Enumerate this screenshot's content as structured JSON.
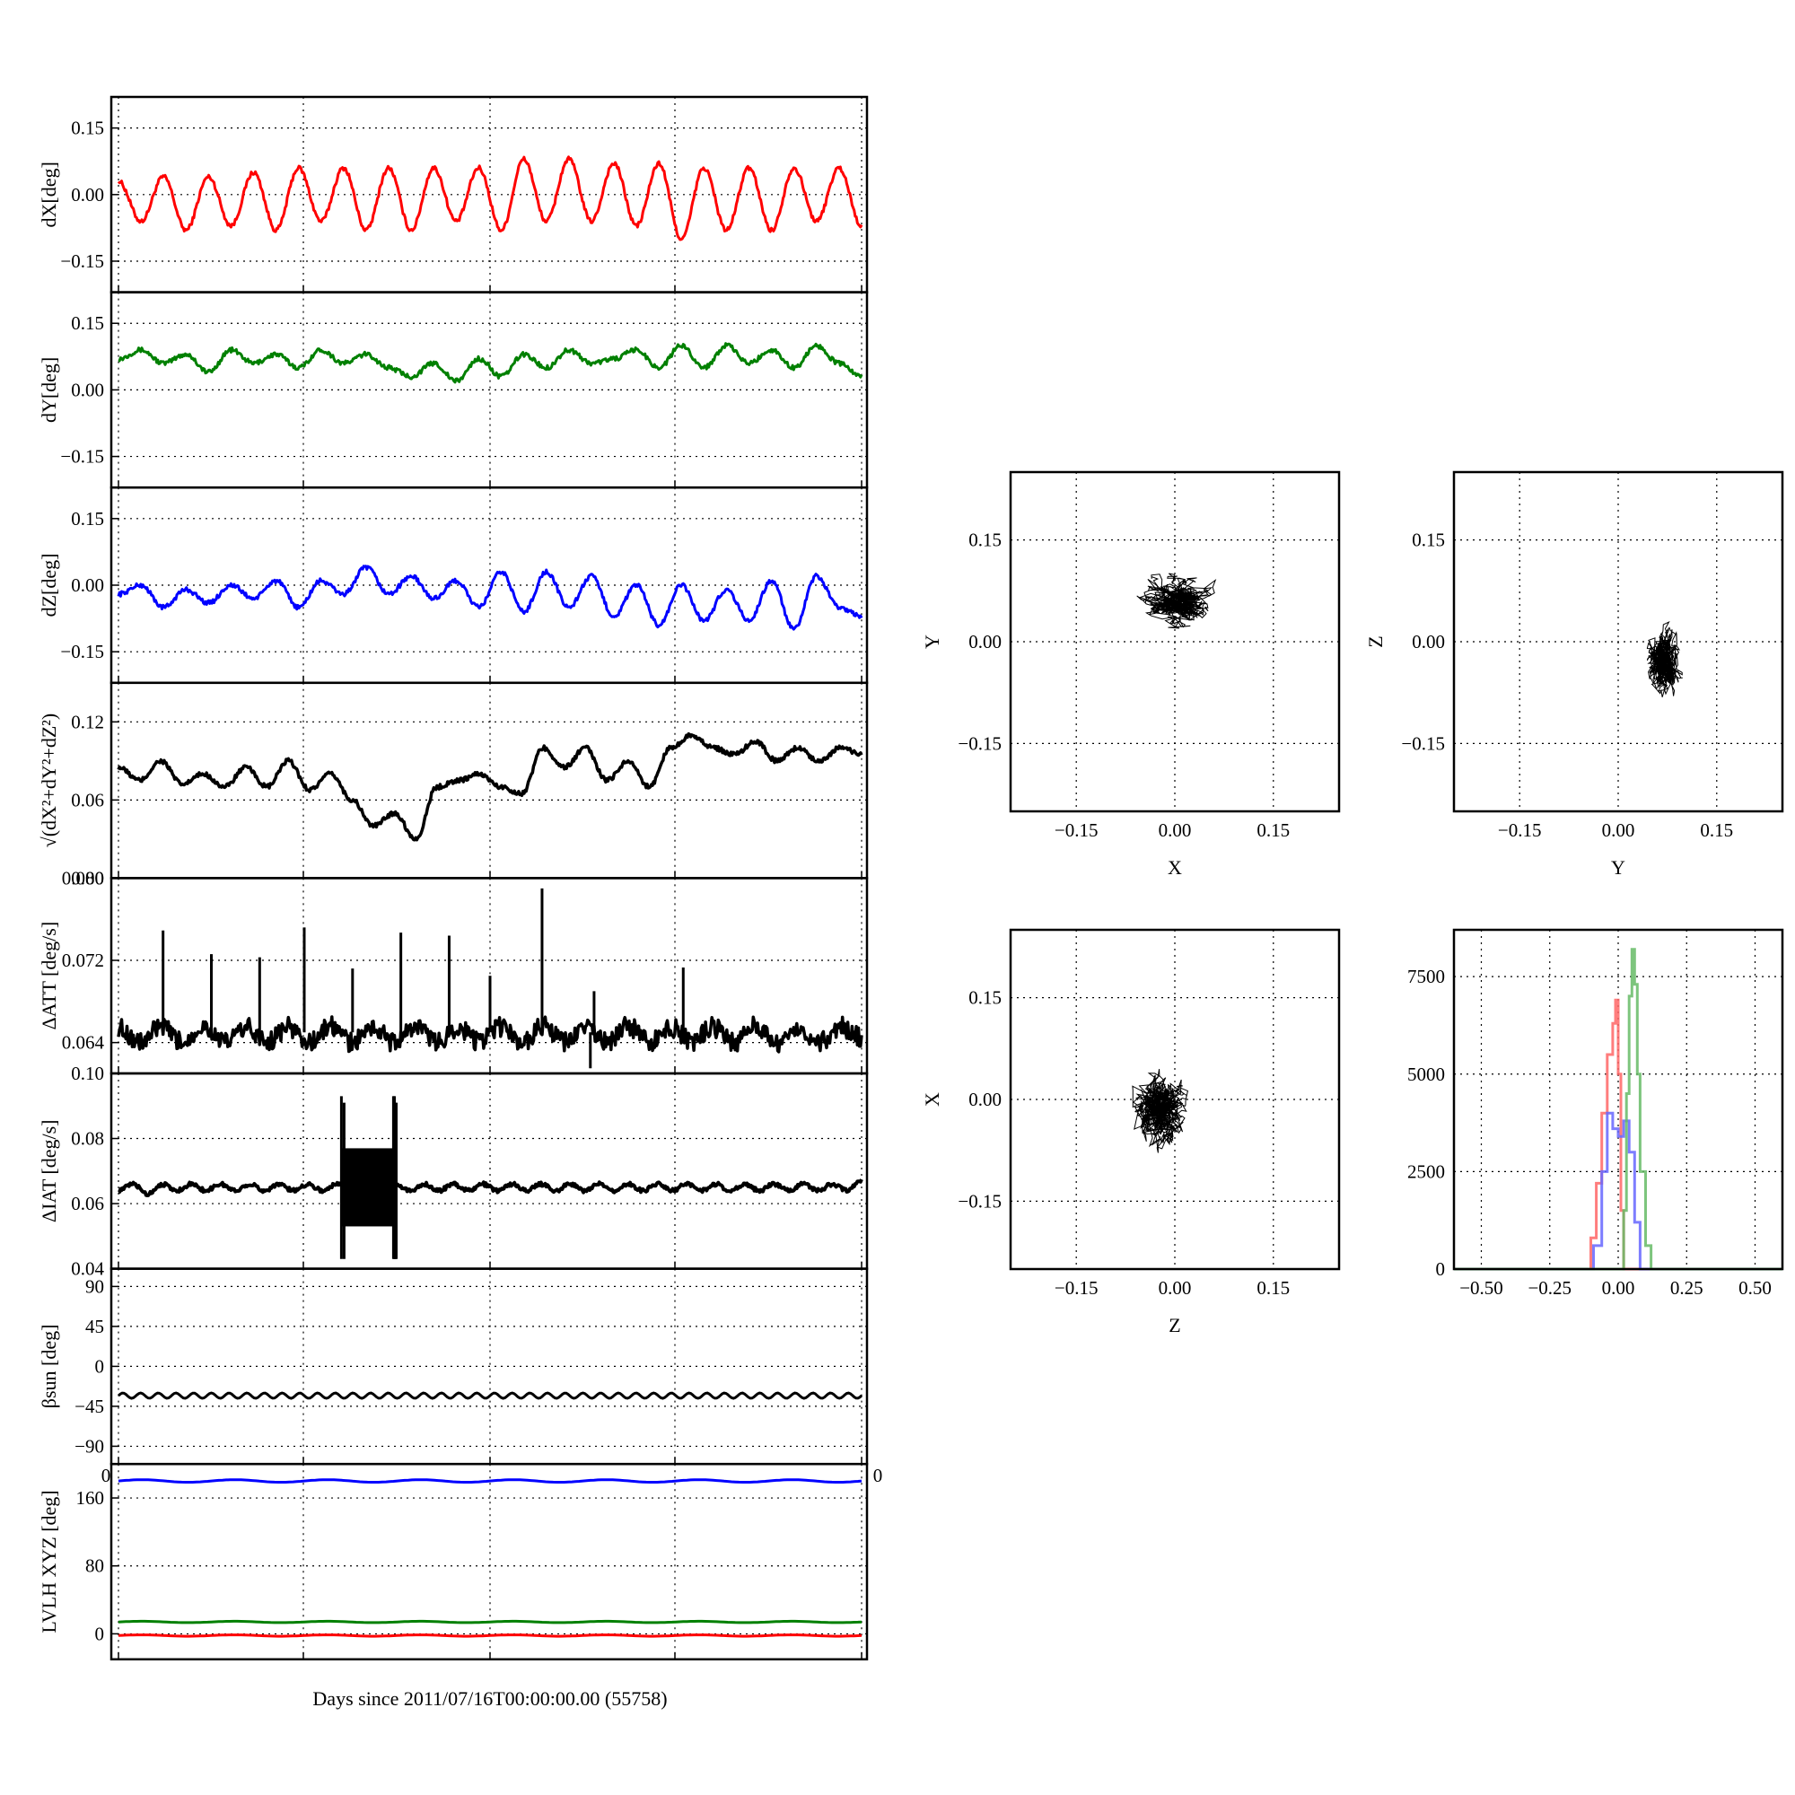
{
  "chart_data": {
    "xlabel": "Days since 2011/07/16T00:00:00.00 (55758)",
    "timeseries": [
      {
        "id": "dx",
        "type": "line",
        "ylabel": "dX[deg]",
        "ylim": [
          -0.22,
          0.22
        ],
        "yticks": [
          "0.15",
          "0.00",
          "−0.15"
        ],
        "ytick_values": [
          0.15,
          0.0,
          -0.15
        ],
        "color": "#ff0000",
        "line_width": 3,
        "series": [
          {
            "values": [
              0.03,
              -0.06,
              0.04,
              -0.08,
              0.04,
              -0.07,
              0.05,
              -0.08,
              0.06,
              -0.06,
              0.06,
              -0.08,
              0.06,
              -0.08,
              0.06,
              -0.06,
              0.06,
              -0.08,
              0.08,
              -0.06,
              0.08,
              -0.06,
              0.07,
              -0.07,
              0.07,
              -0.1,
              0.06,
              -0.08,
              0.06,
              -0.08,
              0.06,
              -0.06,
              0.06,
              -0.07
            ]
          }
        ]
      },
      {
        "id": "dy",
        "type": "line",
        "ylabel": "dY[deg]",
        "ylim": [
          -0.22,
          0.22
        ],
        "yticks": [
          "0.15",
          "0.00",
          "−0.15"
        ],
        "ytick_values": [
          0.15,
          0.0,
          -0.15
        ],
        "color": "#008000",
        "line_width": 3,
        "series": [
          {
            "values": [
              0.07,
              0.09,
              0.06,
              0.08,
              0.04,
              0.09,
              0.06,
              0.08,
              0.05,
              0.09,
              0.06,
              0.08,
              0.05,
              0.03,
              0.06,
              0.02,
              0.07,
              0.03,
              0.08,
              0.05,
              0.09,
              0.06,
              0.07,
              0.09,
              0.05,
              0.1,
              0.05,
              0.1,
              0.06,
              0.09,
              0.05,
              0.1,
              0.06,
              0.03
            ]
          }
        ]
      },
      {
        "id": "dz",
        "type": "line",
        "ylabel": "dZ[deg]",
        "ylim": [
          -0.22,
          0.22
        ],
        "yticks": [
          "0.15",
          "0.00",
          "−0.15"
        ],
        "ytick_values": [
          0.15,
          0.0,
          -0.15
        ],
        "color": "#0000ff",
        "line_width": 3,
        "series": [
          {
            "values": [
              -0.02,
              0.0,
              -0.05,
              -0.01,
              -0.04,
              0.0,
              -0.03,
              0.01,
              -0.05,
              0.01,
              -0.02,
              0.04,
              -0.02,
              0.02,
              -0.03,
              0.01,
              -0.05,
              0.03,
              -0.06,
              0.03,
              -0.05,
              0.02,
              -0.07,
              0.0,
              -0.09,
              0.0,
              -0.08,
              -0.01,
              -0.08,
              0.01,
              -0.1,
              0.02,
              -0.05,
              -0.07
            ]
          }
        ]
      },
      {
        "id": "mag",
        "type": "line",
        "ylabel": "√(dX²+dY²+dZ²)",
        "ylim": [
          0.0,
          0.15
        ],
        "yticks": [
          "0.12",
          "0.06",
          "0.00"
        ],
        "ytick_values": [
          0.12,
          0.06,
          0.0
        ],
        "color": "#000000",
        "line_width": 3.5,
        "series": [
          {
            "values": [
              0.085,
              0.075,
              0.09,
              0.072,
              0.08,
              0.07,
              0.085,
              0.07,
              0.09,
              0.068,
              0.08,
              0.06,
              0.04,
              0.05,
              0.03,
              0.07,
              0.075,
              0.08,
              0.07,
              0.065,
              0.1,
              0.085,
              0.1,
              0.075,
              0.09,
              0.07,
              0.1,
              0.11,
              0.1,
              0.095,
              0.105,
              0.09,
              0.1,
              0.09,
              0.1,
              0.095
            ]
          }
        ]
      },
      {
        "id": "datt",
        "type": "line",
        "ylabel": "ΔATT [deg/s]",
        "ylim": [
          0.061,
          0.08
        ],
        "yticks": [
          "0.080",
          "0.072",
          "0.064"
        ],
        "ytick_values": [
          0.08,
          0.072,
          0.064
        ],
        "color": "#000000",
        "line_width": 3.5,
        "series": [
          {
            "values": [
              0.0655,
              0.064,
              0.0655,
              0.064,
              0.0656,
              0.064,
              0.0655,
              0.0641,
              0.0655,
              0.064,
              0.0656,
              0.064,
              0.0655,
              0.064,
              0.0656,
              0.064,
              0.0655,
              0.0641,
              0.0655,
              0.064,
              0.0656,
              0.064,
              0.0655,
              0.064,
              0.0656,
              0.064,
              0.0655,
              0.0641,
              0.0655,
              0.064,
              0.0656,
              0.064,
              0.0655,
              0.064,
              0.0656,
              0.0645
            ]
          }
        ],
        "spikes": [
          {
            "x": 0.06,
            "y": 0.0749
          },
          {
            "x": 0.125,
            "y": 0.0726
          },
          {
            "x": 0.19,
            "y": 0.0723
          },
          {
            "x": 0.25,
            "y": 0.0752
          },
          {
            "x": 0.315,
            "y": 0.0712
          },
          {
            "x": 0.38,
            "y": 0.0747
          },
          {
            "x": 0.445,
            "y": 0.0744
          },
          {
            "x": 0.5,
            "y": 0.0705
          },
          {
            "x": 0.57,
            "y": 0.079
          },
          {
            "x": 0.64,
            "y": 0.069
          },
          {
            "x": 0.76,
            "y": 0.0713
          },
          {
            "x": 0.635,
            "y": 0.0615
          }
        ]
      },
      {
        "id": "diat",
        "type": "line",
        "ylabel": "ΔIAT [deg/s]",
        "ylim": [
          0.04,
          0.1
        ],
        "yticks": [
          "0.10",
          "0.08",
          "0.06",
          "0.04"
        ],
        "ytick_values": [
          0.1,
          0.08,
          0.06,
          0.04
        ],
        "color": "#000000",
        "line_width": 4,
        "series": [
          {
            "values": [
              0.064,
              0.066,
              0.063,
              0.066,
              0.064,
              0.066,
              0.064,
              0.066,
              0.064,
              0.066,
              0.064,
              0.066,
              0.064,
              0.066,
              0.064,
              0.066,
              0.064,
              0.066,
              0.064,
              0.066,
              0.064,
              0.066,
              0.064,
              0.066,
              0.064,
              0.066,
              0.064,
              0.066,
              0.064,
              0.066,
              0.064,
              0.066,
              0.064,
              0.066,
              0.064,
              0.066,
              0.064,
              0.066,
              0.064,
              0.066,
              0.064,
              0.066,
              0.064,
              0.066,
              0.064,
              0.066,
              0.064,
              0.066,
              0.064,
              0.066,
              0.064,
              0.067
            ]
          }
        ],
        "band": {
          "x0": 0.3,
          "x1": 0.375,
          "low": 0.053,
          "high": 0.077,
          "spike_high": 0.093,
          "spike_low": 0.043
        }
      },
      {
        "id": "bsun",
        "type": "line",
        "ylabel": "βsun [deg]",
        "ylim": [
          -110,
          110
        ],
        "yticks": [
          "90",
          "45",
          "0",
          "−45",
          "−90"
        ],
        "ytick_values": [
          90,
          45,
          0,
          -45,
          -90
        ],
        "color": "#000000",
        "line_width": 3,
        "series": [
          {
            "center": -33,
            "amplitude": 3
          }
        ]
      },
      {
        "id": "lvlh",
        "type": "line",
        "ylabel": "LVLH XYZ [deg]",
        "ylim": [
          -30,
          200
        ],
        "yticks": [
          "160",
          "80",
          "0"
        ],
        "ytick_values": [
          160,
          80,
          0
        ],
        "series": [
          {
            "color": "#0000ff",
            "center": 180,
            "amplitude": 1.5
          },
          {
            "color": "#008000",
            "center": 14,
            "amplitude": 0.8
          },
          {
            "color": "#ff0000",
            "center": -2,
            "amplitude": 0.8
          }
        ]
      }
    ],
    "overlap_labels": {
      "left": "0",
      "right": "0"
    },
    "scatter_panels": [
      {
        "id": "xy",
        "type": "scatter",
        "xlabel": "X",
        "ylabel": "Y",
        "xlim": [
          -0.25,
          0.25
        ],
        "ylim": [
          -0.25,
          0.25
        ],
        "xticks": [
          "−0.15",
          "0.00",
          "0.15"
        ],
        "yticks": [
          "0.15",
          "0.00",
          "−0.15"
        ],
        "tick_values": [
          -0.15,
          0.0,
          0.15
        ],
        "center": [
          0.0,
          0.06
        ],
        "spread": [
          0.055,
          0.035
        ]
      },
      {
        "id": "yz",
        "type": "scatter",
        "xlabel": "Y",
        "ylabel": "Z",
        "xlim": [
          -0.25,
          0.25
        ],
        "ylim": [
          -0.25,
          0.25
        ],
        "xticks": [
          "−0.15",
          "0.00",
          "0.15"
        ],
        "yticks": [
          "0.15",
          "0.00",
          "−0.15"
        ],
        "tick_values": [
          -0.15,
          0.0,
          0.15
        ],
        "center": [
          0.07,
          -0.03
        ],
        "spread": [
          0.028,
          0.045
        ]
      },
      {
        "id": "zx",
        "type": "scatter",
        "xlabel": "Z",
        "ylabel": "X",
        "xlim": [
          -0.25,
          0.25
        ],
        "ylim": [
          -0.25,
          0.25
        ],
        "xticks": [
          "−0.15",
          "0.00",
          "0.15"
        ],
        "yticks": [
          "0.15",
          "0.00",
          "−0.15"
        ],
        "tick_values": [
          -0.15,
          0.0,
          0.15
        ],
        "center": [
          -0.02,
          -0.01
        ],
        "spread": [
          0.045,
          0.055
        ]
      }
    ],
    "histogram": {
      "id": "hist",
      "type": "line",
      "xlim": [
        -0.6,
        0.6
      ],
      "ylim": [
        0,
        8700
      ],
      "xticks": [
        "−0.50",
        "−0.25",
        "0.00",
        "0.25",
        "0.50"
      ],
      "xtick_values": [
        -0.5,
        -0.25,
        0.0,
        0.25,
        0.5
      ],
      "yticks": [
        "7500",
        "5000",
        "2500",
        "0"
      ],
      "ytick_values": [
        7500,
        5000,
        2500,
        0
      ],
      "series": [
        {
          "color": "#ff6666",
          "x": [
            -0.6,
            -0.12,
            -0.1,
            -0.08,
            -0.06,
            -0.04,
            -0.02,
            -0.01,
            0.0,
            0.01,
            0.02,
            0.6
          ],
          "y": [
            0,
            0,
            800,
            2200,
            4000,
            5500,
            6300,
            6900,
            5000,
            1500,
            0,
            0
          ]
        },
        {
          "color": "#6666ff",
          "x": [
            -0.6,
            -0.12,
            -0.09,
            -0.06,
            -0.04,
            -0.02,
            0.0,
            0.02,
            0.04,
            0.06,
            0.08,
            0.6
          ],
          "y": [
            0,
            0,
            600,
            2500,
            4000,
            3600,
            3400,
            3800,
            3000,
            1200,
            0,
            0
          ]
        },
        {
          "color": "#66bb66",
          "x": [
            -0.6,
            0.0,
            0.02,
            0.03,
            0.04,
            0.05,
            0.06,
            0.07,
            0.08,
            0.1,
            0.12,
            0.6
          ],
          "y": [
            0,
            0,
            1500,
            4500,
            7000,
            8200,
            7300,
            5000,
            2500,
            600,
            0,
            0
          ]
        }
      ]
    }
  }
}
